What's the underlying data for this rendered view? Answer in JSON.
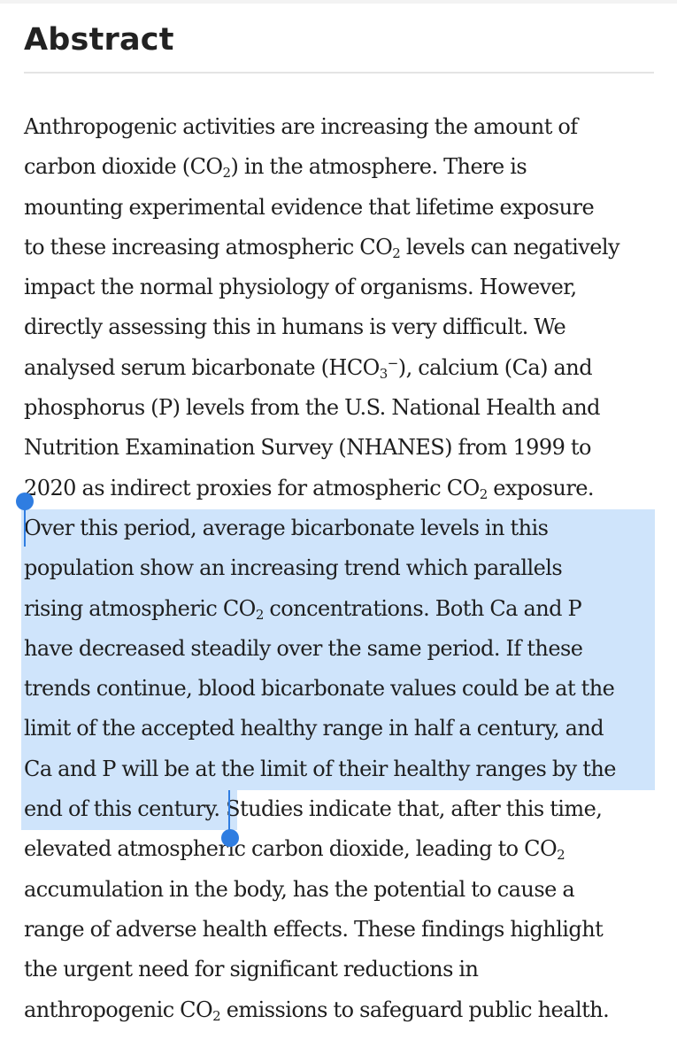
{
  "heading": "Abstract",
  "colors": {
    "selection": "#cfe4fb",
    "selection_handle": "#2f7de1",
    "text": "#1e1e1e"
  },
  "icons": {
    "start_handle": "selection-start-handle-icon",
    "end_handle": "selection-end-handle-icon"
  },
  "abstract": {
    "l1": "Anthropogenic activities are increasing the amount of",
    "l2a": "carbon dioxide (CO",
    "l2sub": "2",
    "l2b": ") in the atmosphere. There is",
    "l3": "mounting experimental evidence that lifetime exposure",
    "l4a": "to these increasing atmospheric CO",
    "l4sub": "2",
    "l4b": " levels can negatively",
    "l5": "impact the normal physiology of organisms. However,",
    "l6": "directly assessing this in humans is very difficult. We",
    "l7a": "analysed serum bicarbonate (HCO",
    "l7sub": "3",
    "l7sup": "−",
    "l7b": "), calcium (Ca) and",
    "l8": "phosphorus (P) levels from the U.S. National Health and",
    "l9": "Nutrition Examination Survey (NHANES) from 1999 to",
    "l10a": "2020 as indirect proxies for atmospheric CO",
    "l10sub": "2",
    "l10b": " exposure.",
    "l11": "Over this period, average bicarbonate levels in this",
    "l12": "population show an increasing trend which parallels",
    "l13a": "rising atmospheric CO",
    "l13sub": "2",
    "l13b": " concentrations. Both Ca and P",
    "l14": "have decreased steadily over the same period. If these",
    "l15": "trends continue, blood bicarbonate values could be at the",
    "l16": "limit of the accepted healthy range in half a century, and",
    "l17": "Ca and P will be at the limit of their healthy ranges by the",
    "l18a": "end of this century.",
    "l18b": " Studies indicate that, after this time,",
    "l19a": "elevated atmospheric carbon dioxide, leading to CO",
    "l19sub": "2",
    "l20": "accumulation in the body, has the potential to cause a",
    "l21": "range of adverse health effects. These findings highlight",
    "l22": "the urgent need for significant reductions in",
    "l23a": "anthropogenic CO",
    "l23sub": "2",
    "l23b": " emissions to safeguard public health."
  }
}
